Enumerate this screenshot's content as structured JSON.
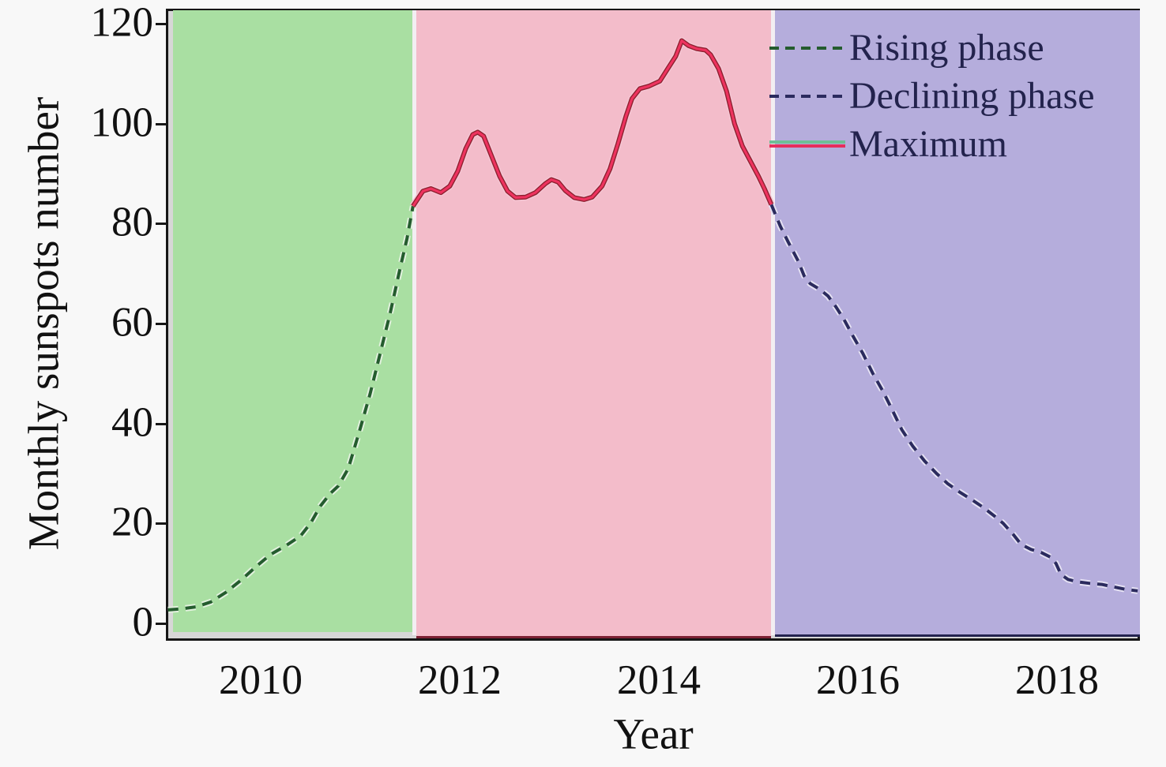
{
  "figure": {
    "xlabel": "Year",
    "ylabel": "Monthly sunspots number",
    "legend": [
      {
        "label": "Rising phase",
        "style": "dashed",
        "color": "#245c2e"
      },
      {
        "label": "Declining phase",
        "style": "dashed",
        "color": "#2b2b5e"
      },
      {
        "label": "Maximum",
        "style": "solid",
        "color": "#e62e5c",
        "secondary_color": "#6fbe96"
      }
    ]
  },
  "chart_data": {
    "type": "line",
    "title": "",
    "xlabel": "Year",
    "ylabel": "Monthly sunspots number",
    "x_ticks": [
      2010,
      2012,
      2014,
      2016,
      2018
    ],
    "y_ticks": [
      0,
      20,
      40,
      60,
      80,
      100,
      120
    ],
    "xlim": [
      2009.1,
      2018.8
    ],
    "ylim": [
      0,
      120
    ],
    "grid": false,
    "legend_position": "upper right",
    "background_regions": [
      {
        "name": "rising-phase-region",
        "x_start": 2009.12,
        "x_end": 2011.52,
        "fill": "#a9dfa2"
      },
      {
        "name": "maximum-region",
        "x_start": 2011.56,
        "x_end": 2015.13,
        "fill": "#f3bcca"
      },
      {
        "name": "declining-phase-region",
        "x_start": 2015.17,
        "x_end": 2018.83,
        "fill": "#b5addc"
      }
    ],
    "series": [
      {
        "name": "Rising phase",
        "style": "dashed",
        "color": "#245c2e",
        "points": [
          [
            2009.07,
            2.7
          ],
          [
            2009.2,
            2.9
          ],
          [
            2009.35,
            3.3
          ],
          [
            2009.5,
            4.3
          ],
          [
            2009.65,
            6.2
          ],
          [
            2009.8,
            8.6
          ],
          [
            2009.95,
            11.3
          ],
          [
            2010.1,
            13.8
          ],
          [
            2010.25,
            15.5
          ],
          [
            2010.4,
            17.5
          ],
          [
            2010.5,
            20.0
          ],
          [
            2010.6,
            23.5
          ],
          [
            2010.7,
            26.0
          ],
          [
            2010.78,
            27.5
          ],
          [
            2010.88,
            31.0
          ],
          [
            2011.0,
            39.0
          ],
          [
            2011.1,
            46.0
          ],
          [
            2011.2,
            54.0
          ],
          [
            2011.3,
            62.0
          ],
          [
            2011.4,
            71.0
          ],
          [
            2011.47,
            77.0
          ],
          [
            2011.53,
            83.5
          ]
        ]
      },
      {
        "name": "Maximum",
        "style": "solid",
        "color": "#ee335f",
        "points": [
          [
            2011.53,
            83.5
          ],
          [
            2011.63,
            86.5
          ],
          [
            2011.71,
            87.0
          ],
          [
            2011.81,
            86.2
          ],
          [
            2011.9,
            87.5
          ],
          [
            2011.98,
            90.5
          ],
          [
            2012.06,
            95.0
          ],
          [
            2012.13,
            97.8
          ],
          [
            2012.18,
            98.3
          ],
          [
            2012.24,
            97.5
          ],
          [
            2012.32,
            93.5
          ],
          [
            2012.4,
            89.5
          ],
          [
            2012.48,
            86.5
          ],
          [
            2012.56,
            85.2
          ],
          [
            2012.66,
            85.3
          ],
          [
            2012.76,
            86.2
          ],
          [
            2012.86,
            88.0
          ],
          [
            2012.92,
            88.8
          ],
          [
            2012.99,
            88.3
          ],
          [
            2013.06,
            86.6
          ],
          [
            2013.15,
            85.2
          ],
          [
            2013.25,
            84.8
          ],
          [
            2013.33,
            85.3
          ],
          [
            2013.43,
            87.5
          ],
          [
            2013.51,
            91.0
          ],
          [
            2013.59,
            96.0
          ],
          [
            2013.67,
            101.5
          ],
          [
            2013.73,
            105.0
          ],
          [
            2013.81,
            107.0
          ],
          [
            2013.9,
            107.5
          ],
          [
            2014.01,
            108.5
          ],
          [
            2014.09,
            111.0
          ],
          [
            2014.17,
            113.5
          ],
          [
            2014.23,
            116.6
          ],
          [
            2014.3,
            115.6
          ],
          [
            2014.38,
            115.0
          ],
          [
            2014.47,
            114.7
          ],
          [
            2014.52,
            113.8
          ],
          [
            2014.6,
            111.0
          ],
          [
            2014.68,
            106.5
          ],
          [
            2014.76,
            100.0
          ],
          [
            2014.84,
            95.5
          ],
          [
            2014.92,
            92.5
          ],
          [
            2015.0,
            89.5
          ],
          [
            2015.06,
            87.0
          ],
          [
            2015.13,
            83.8
          ]
        ]
      },
      {
        "name": "Declining phase",
        "style": "dashed",
        "color": "#2b2b5e",
        "points": [
          [
            2015.13,
            83.8
          ],
          [
            2015.22,
            79.5
          ],
          [
            2015.3,
            76.3
          ],
          [
            2015.4,
            72.5
          ],
          [
            2015.46,
            69.5
          ],
          [
            2015.52,
            68.0
          ],
          [
            2015.62,
            66.8
          ],
          [
            2015.7,
            65.5
          ],
          [
            2015.78,
            63.3
          ],
          [
            2015.86,
            60.8
          ],
          [
            2015.95,
            57.5
          ],
          [
            2016.05,
            54.0
          ],
          [
            2016.15,
            50.0
          ],
          [
            2016.25,
            46.5
          ],
          [
            2016.35,
            42.5
          ],
          [
            2016.44,
            38.8
          ],
          [
            2016.55,
            35.5
          ],
          [
            2016.67,
            32.5
          ],
          [
            2016.79,
            30.0
          ],
          [
            2016.9,
            28.0
          ],
          [
            2017.02,
            26.3
          ],
          [
            2017.14,
            24.8
          ],
          [
            2017.26,
            23.2
          ],
          [
            2017.37,
            21.5
          ],
          [
            2017.46,
            20.0
          ],
          [
            2017.56,
            17.8
          ],
          [
            2017.64,
            15.8
          ],
          [
            2017.74,
            14.8
          ],
          [
            2017.84,
            14.2
          ],
          [
            2017.94,
            13.2
          ],
          [
            2017.99,
            12.0
          ],
          [
            2018.04,
            9.8
          ],
          [
            2018.11,
            8.8
          ],
          [
            2018.21,
            8.3
          ],
          [
            2018.33,
            8.0
          ],
          [
            2018.45,
            7.8
          ],
          [
            2018.57,
            7.3
          ],
          [
            2018.69,
            6.8
          ],
          [
            2018.81,
            6.5
          ]
        ]
      }
    ]
  }
}
